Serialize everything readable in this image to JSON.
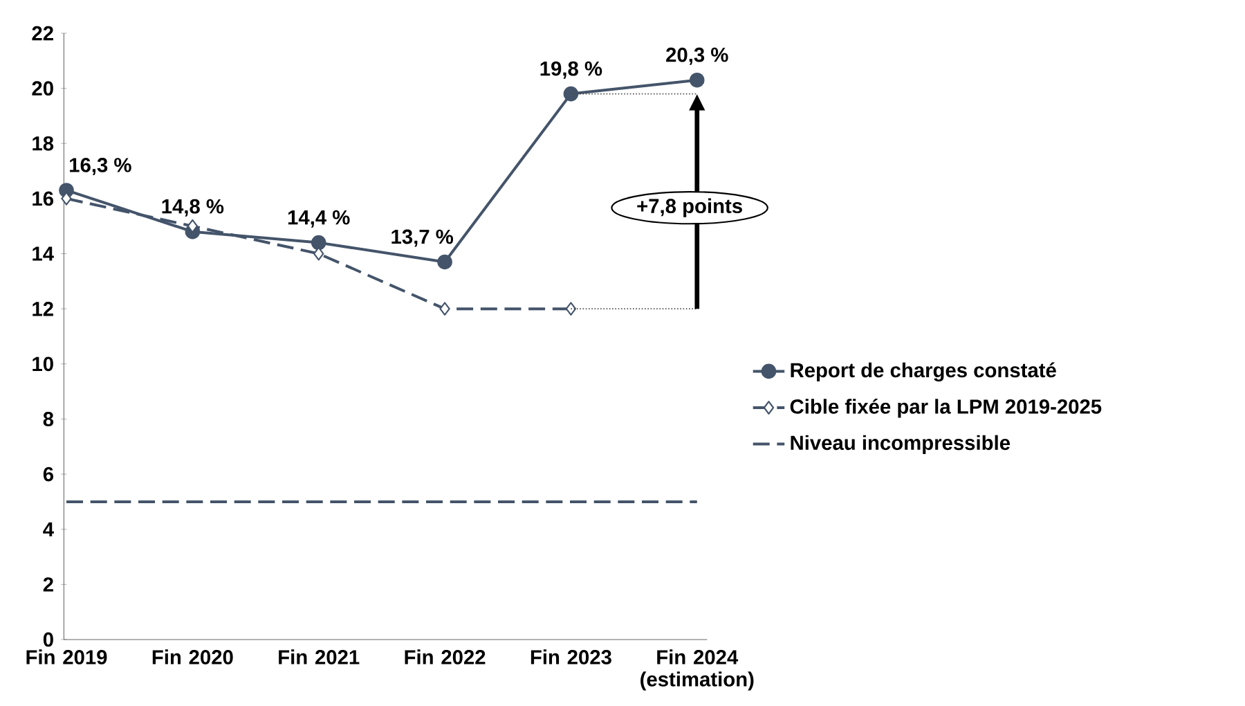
{
  "chart_data": {
    "type": "line",
    "categories": [
      "Fin 2019",
      "Fin 2020",
      "Fin 2021",
      "Fin 2022",
      "Fin 2023",
      "Fin 2024 (estimation)"
    ],
    "series": [
      {
        "name": "Report de charges constaté",
        "color": "#44546a",
        "values": [
          16.3,
          14.8,
          14.4,
          13.7,
          19.8,
          20.3
        ],
        "marker": "circle",
        "line_style": "solid",
        "value_labels": [
          "16,3 %",
          "14,8 %",
          "14,4 %",
          "13,7 %",
          "19,8 %",
          "20,3 %"
        ]
      },
      {
        "name": "Cible fixée par la LPM 2019-2025",
        "color": "#44546a",
        "values": [
          16,
          15,
          14,
          12,
          12,
          null
        ],
        "marker": "diamond",
        "line_style": "dashed"
      },
      {
        "name": "Niveau incompressible",
        "color": "#44546a",
        "values": [
          5,
          5,
          5,
          5,
          5,
          5
        ],
        "marker": "none",
        "line_style": "dashed"
      }
    ],
    "annotations": [
      "+7,8 points"
    ],
    "ylim": [
      0,
      22
    ],
    "yticks": [
      0,
      2,
      4,
      6,
      8,
      10,
      12,
      14,
      16,
      18,
      20,
      22
    ],
    "grid": false,
    "legend": "right"
  }
}
